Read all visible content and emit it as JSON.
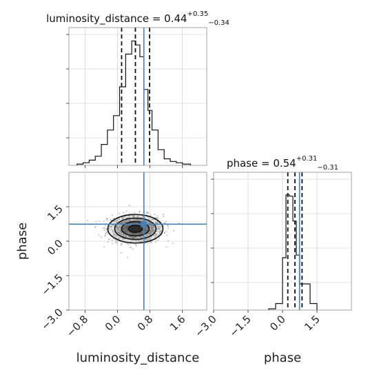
{
  "colors": {
    "truth": "#4a7fb3",
    "hist": "#111111",
    "scatter": "#9a9a9a",
    "density_core": "#1a1a1a"
  },
  "chart_data": [
    {
      "type": "histogram",
      "panel": "luminosity_distance-marginal",
      "title": {
        "prefix": "luminosity_distance = 0.44",
        "plus": "+0.35",
        "minus": "−0.34"
      },
      "xlim": [
        -1.2,
        2.2
      ],
      "grid": true,
      "bins": [
        -1.0,
        -0.85,
        -0.7,
        -0.55,
        -0.4,
        -0.25,
        -0.1,
        0.05,
        0.2,
        0.35,
        0.45,
        0.55,
        0.65,
        0.75,
        0.85,
        1.0,
        1.15,
        1.3,
        1.45,
        1.6,
        1.8
      ],
      "counts": [
        0.01,
        0.02,
        0.04,
        0.07,
        0.16,
        0.27,
        0.38,
        0.6,
        0.85,
        0.95,
        0.92,
        0.83,
        0.58,
        0.42,
        0.27,
        0.12,
        0.05,
        0.03,
        0.02,
        0.01
      ],
      "quantiles": [
        0.1,
        0.44,
        0.79
      ],
      "truth": 0.65
    },
    {
      "type": "histogram",
      "panel": "phase-marginal",
      "title": {
        "prefix": "phase = 0.54",
        "plus": "+0.31",
        "minus": "−0.31"
      },
      "xlim": [
        -3.0,
        3.0
      ],
      "grid": true,
      "bins": [
        -0.6,
        -0.3,
        0.0,
        0.15,
        0.3,
        0.45,
        0.6,
        0.75,
        0.9,
        1.2,
        1.5
      ],
      "counts": [
        0.01,
        0.05,
        0.4,
        0.88,
        0.87,
        0.68,
        0.42,
        0.2,
        0.2,
        0.05
      ],
      "quantiles": [
        0.23,
        0.54,
        0.85
      ],
      "truth": 0.74,
      "xlabel": "phase",
      "xticks": [
        "−3.0",
        "−1.5",
        "0.0",
        "1.5"
      ]
    },
    {
      "type": "scatter",
      "panel": "joint-posterior",
      "x_param": "luminosity_distance",
      "y_param": "phase",
      "xlim": [
        -1.2,
        2.2
      ],
      "ylim": [
        -3.0,
        3.0
      ],
      "grid": true,
      "density_center": [
        0.44,
        0.54
      ],
      "truth": [
        0.65,
        0.74
      ],
      "contour_levels": [
        "0.5 sigma",
        "1 sigma",
        "1.5 sigma",
        "2 sigma"
      ],
      "xlabel": "luminosity_distance",
      "ylabel": "phase",
      "xticks": [
        "−0.8",
        "0.0",
        "0.8",
        "1.6"
      ],
      "yticks": [
        "1.5",
        "0.0",
        "−1.5",
        "−3.0"
      ]
    }
  ]
}
